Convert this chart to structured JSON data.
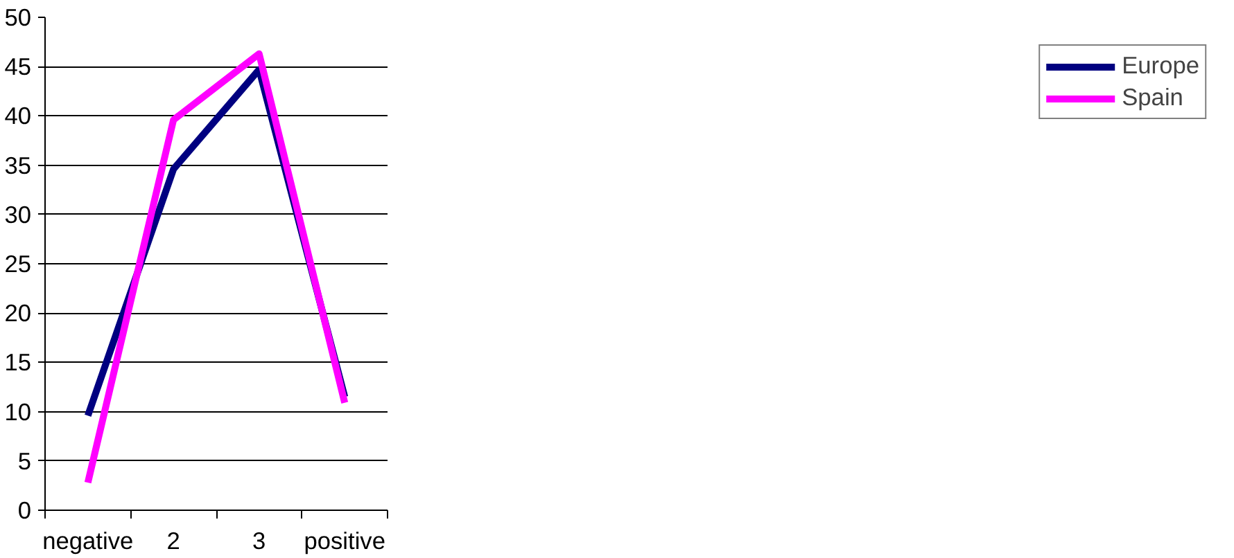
{
  "chart_data": {
    "type": "line",
    "categories": [
      "negative",
      "2",
      "3",
      "positive"
    ],
    "series": [
      {
        "name": "Europe",
        "color": "#000080",
        "values": [
          9.6,
          34.6,
          44.7,
          11.5
        ]
      },
      {
        "name": "Spain",
        "color": "#ff00ff",
        "values": [
          2.8,
          39.6,
          46.3,
          10.9
        ]
      }
    ],
    "ylim": [
      0,
      50
    ],
    "yticks": [
      0,
      5,
      10,
      15,
      20,
      25,
      30,
      35,
      40,
      45,
      50
    ],
    "grid": "y",
    "legend": "right",
    "marker": "none",
    "line_style": "solid"
  }
}
